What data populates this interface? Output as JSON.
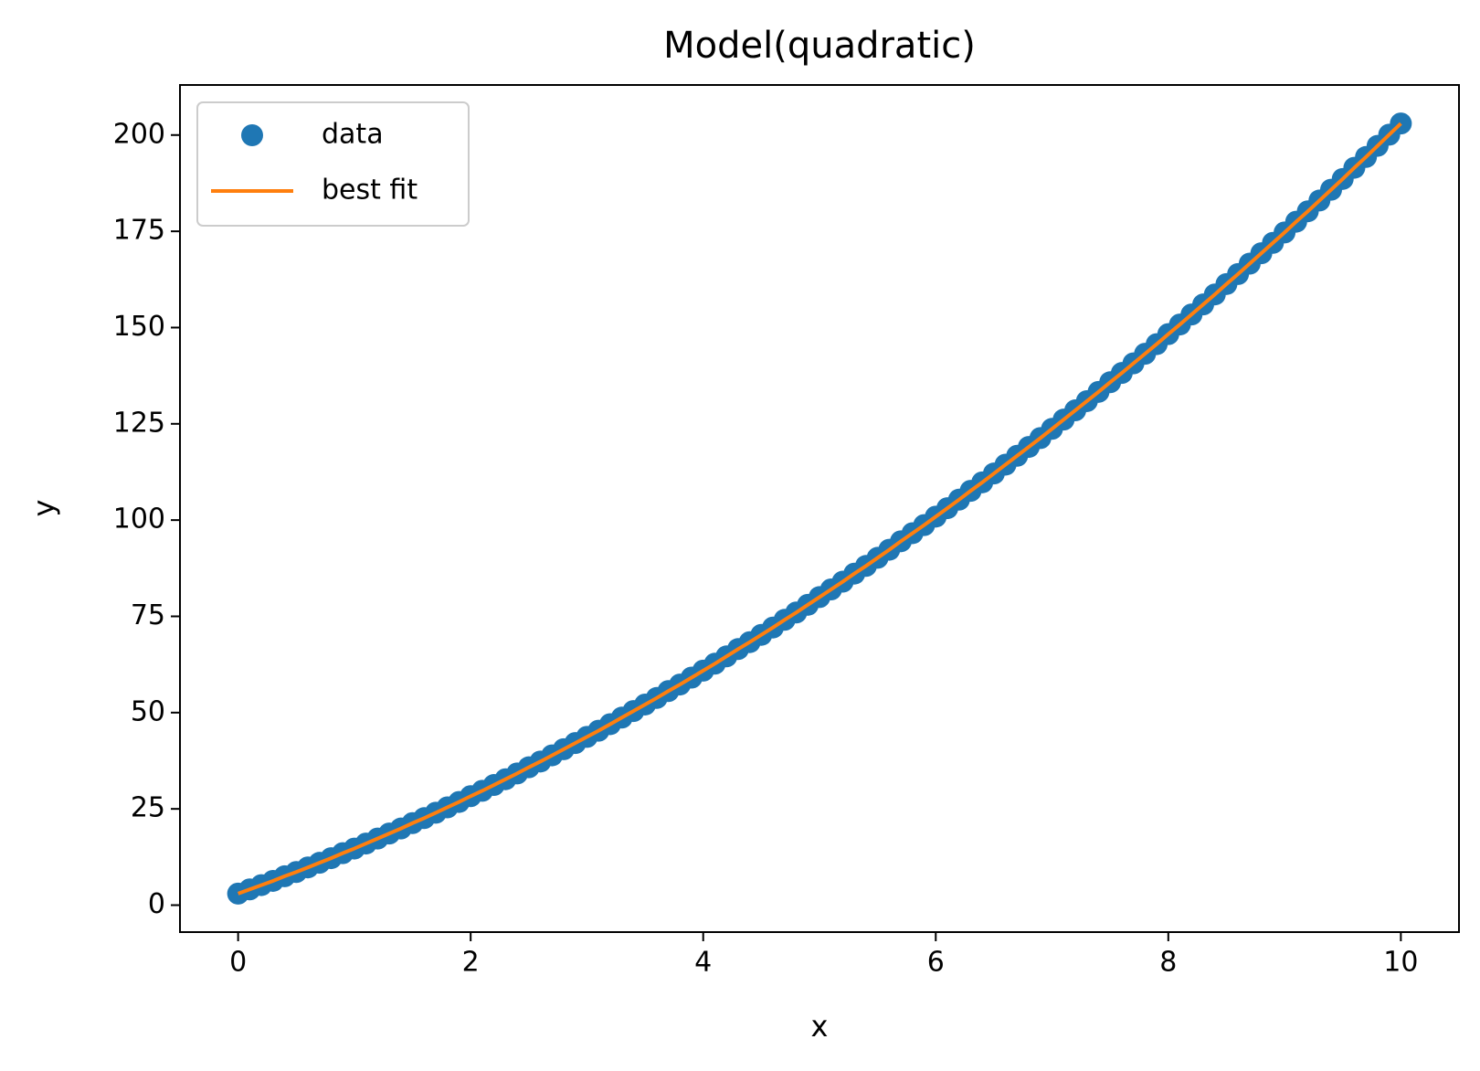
{
  "chart_data": {
    "type": "line",
    "title": "Model(quadratic)",
    "x_label": "x",
    "y_label": "y",
    "x": [
      0,
      0.1,
      0.2,
      0.3,
      0.4,
      0.5,
      0.6,
      0.7,
      0.8,
      0.9,
      1,
      1.1,
      1.2,
      1.3,
      1.4,
      1.5,
      1.6,
      1.7,
      1.8,
      1.9,
      2,
      2.1,
      2.2,
      2.3,
      2.4,
      2.5,
      2.6,
      2.7,
      2.8,
      2.9,
      3,
      3.1,
      3.2,
      3.3,
      3.4,
      3.5,
      3.6,
      3.7,
      3.8,
      3.9,
      4,
      4.1,
      4.2,
      4.3,
      4.4,
      4.5,
      4.6,
      4.7,
      4.8,
      4.9,
      5,
      5.1,
      5.2,
      5.3,
      5.4,
      5.5,
      5.6,
      5.7,
      5.8,
      5.9,
      6,
      6.1,
      6.2,
      6.3,
      6.4,
      6.5,
      6.6,
      6.7,
      6.8,
      6.9,
      7,
      7.1,
      7.2,
      7.3,
      7.4,
      7.5,
      7.6,
      7.7,
      7.8,
      7.9,
      8,
      8.1,
      8.2,
      8.3,
      8.4,
      8.5,
      8.6,
      8.7,
      8.8,
      8.9,
      9,
      9.1,
      9.2,
      9.3,
      9.4,
      9.5,
      9.6,
      9.7,
      9.8,
      9.9,
      10
    ],
    "series": [
      {
        "name": "data",
        "style": "markers",
        "color": "#1f77b4",
        "values": [
          3,
          4.1,
          5.2,
          6.3,
          7.5,
          8.6,
          9.8,
          11.0,
          12.2,
          13.5,
          14.7,
          16.0,
          17.3,
          18.6,
          19.9,
          21.3,
          22.6,
          24.0,
          25.4,
          26.8,
          28.3,
          29.7,
          31.2,
          32.7,
          34.2,
          35.8,
          37.3,
          38.9,
          40.5,
          42.1,
          43.7,
          45.3,
          47.0,
          48.7,
          50.4,
          52.1,
          53.8,
          55.6,
          57.3,
          59.1,
          60.9,
          62.7,
          64.6,
          66.5,
          68.3,
          70.2,
          72.1,
          74.1,
          76.0,
          78.0,
          80,
          82.0,
          84.0,
          86.1,
          88.1,
          90.2,
          92.3,
          94.5,
          96.6,
          98.7,
          100.9,
          103.1,
          105.3,
          107.6,
          109.8,
          112.1,
          114.4,
          116.7,
          119.0,
          121.3,
          123.7,
          126.1,
          128.5,
          130.9,
          133.3,
          135.8,
          138.2,
          140.7,
          143.2,
          145.7,
          148.3,
          150.8,
          153.4,
          156.0,
          158.6,
          161.3,
          163.9,
          166.6,
          169.3,
          172.0,
          174.7,
          177.5,
          180.2,
          183.0,
          185.8,
          188.6,
          191.5,
          194.3,
          197.2,
          200.1,
          203
        ]
      },
      {
        "name": "best fit",
        "style": "line",
        "color": "#ff7f0e",
        "values": [
          3,
          4.1,
          5.2,
          6.3,
          7.5,
          8.6,
          9.8,
          11.0,
          12.2,
          13.5,
          14.7,
          16.0,
          17.3,
          18.6,
          19.9,
          21.3,
          22.6,
          24.0,
          25.4,
          26.8,
          28.3,
          29.7,
          31.2,
          32.7,
          34.2,
          35.8,
          37.3,
          38.9,
          40.5,
          42.1,
          43.7,
          45.3,
          47.0,
          48.7,
          50.4,
          52.1,
          53.8,
          55.6,
          57.3,
          59.1,
          60.9,
          62.7,
          64.6,
          66.5,
          68.3,
          70.2,
          72.1,
          74.1,
          76.0,
          78.0,
          80,
          82.0,
          84.0,
          86.1,
          88.1,
          90.2,
          92.3,
          94.5,
          96.6,
          98.7,
          100.9,
          103.1,
          105.3,
          107.6,
          109.8,
          112.1,
          114.4,
          116.7,
          119.0,
          121.3,
          123.7,
          126.1,
          128.5,
          130.9,
          133.3,
          135.8,
          138.2,
          140.7,
          143.2,
          145.7,
          148.3,
          150.8,
          153.4,
          156.0,
          158.6,
          161.3,
          163.9,
          166.6,
          169.3,
          172.0,
          174.7,
          177.5,
          180.2,
          183.0,
          185.8,
          188.6,
          191.5,
          194.3,
          197.2,
          200.1,
          203
        ]
      }
    ],
    "xlim": [
      -0.5,
      10.5
    ],
    "xticks": [
      0,
      2,
      4,
      6,
      8,
      10
    ],
    "ylim": [
      -7,
      213
    ],
    "yticks": [
      0,
      25,
      50,
      75,
      100,
      125,
      150,
      175,
      200
    ],
    "grid": false,
    "legend": "upper left"
  }
}
